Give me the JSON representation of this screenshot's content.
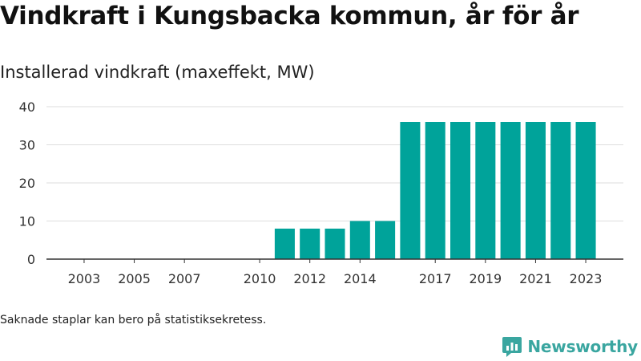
{
  "header": {
    "title": "Vindkraft i Kungsbacka kommun, år för år",
    "subtitle": "Installerad vindkraft (maxeffekt, MW)"
  },
  "footnote": "Saknade staplar kan bero på statistiksekretess.",
  "brand": {
    "name": "Newsworthy",
    "icon": "newsworthy-logo-icon",
    "color": "#3aa6a0"
  },
  "chart_data": {
    "type": "bar",
    "x": [
      2003,
      2004,
      2005,
      2006,
      2007,
      2008,
      2009,
      2010,
      2011,
      2012,
      2013,
      2014,
      2015,
      2016,
      2017,
      2018,
      2019,
      2020,
      2021,
      2022,
      2023
    ],
    "values": [
      0,
      0,
      0,
      0,
      0,
      0,
      0,
      0,
      8,
      8,
      8,
      10,
      10,
      36,
      36,
      36,
      36,
      36,
      36,
      36,
      36
    ],
    "x_tick_labels": [
      "2003",
      "2005",
      "2007",
      "2010",
      "2012",
      "2014",
      "2017",
      "2019",
      "2021",
      "2023"
    ],
    "y_ticks": [
      0,
      10,
      20,
      30,
      40
    ],
    "ylim": [
      0,
      40
    ],
    "xlim": [
      2001.5,
      2024.5
    ],
    "bar_color": "#00a39a",
    "grid": "horizontal",
    "xlabel": "",
    "ylabel": ""
  }
}
